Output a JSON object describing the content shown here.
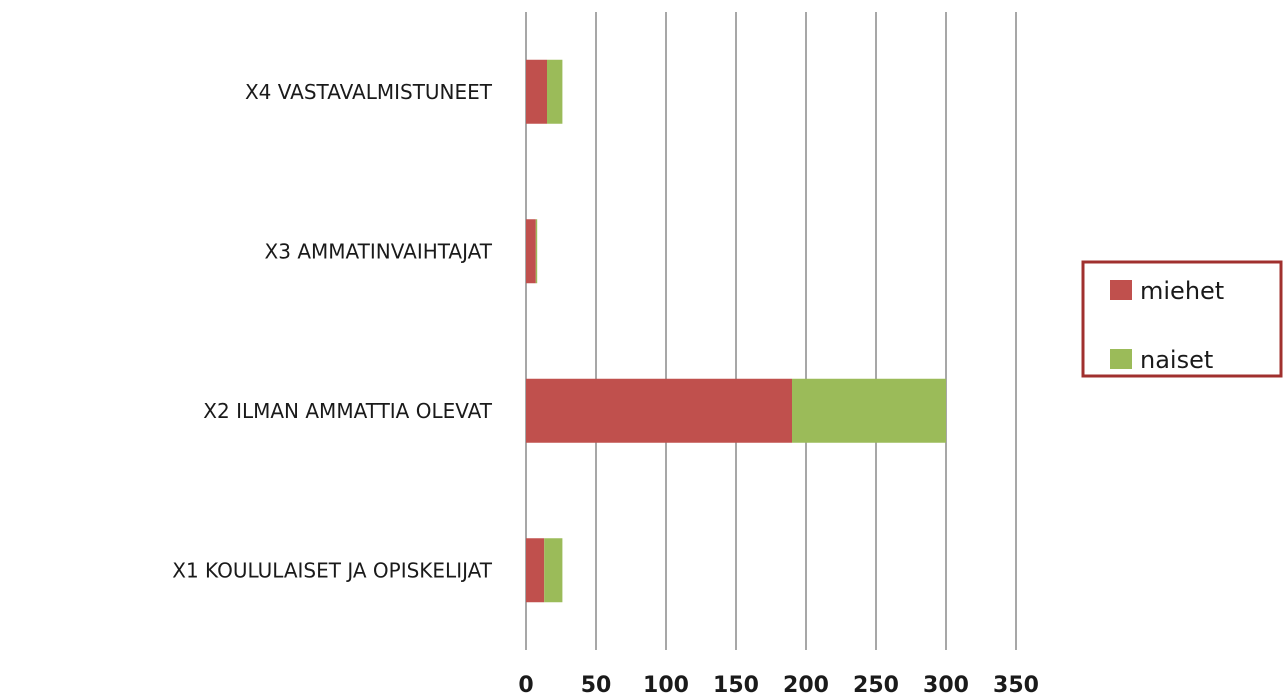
{
  "chart_data": {
    "type": "bar",
    "orientation": "horizontal",
    "stacked": true,
    "categories": [
      "X1 KOULULAISET JA OPISKELIJAT",
      "X2 ILMAN AMMATTIA OLEVAT",
      "X3 AMMATINVAIHTAJAT",
      "X4 VASTAVALMISTUNEET"
    ],
    "series": [
      {
        "name": "miehet",
        "color": "#c0504d",
        "values": [
          13,
          190,
          7,
          15
        ]
      },
      {
        "name": "naiset",
        "color": "#9bbb59",
        "values": [
          13,
          110,
          1,
          11
        ]
      }
    ],
    "xlim": [
      0,
      350
    ],
    "xticks": [
      "0",
      "50",
      "100",
      "150",
      "200",
      "250",
      "300",
      "350"
    ],
    "grid": true,
    "legend": "right",
    "legend_border_color": "#a0302e"
  }
}
